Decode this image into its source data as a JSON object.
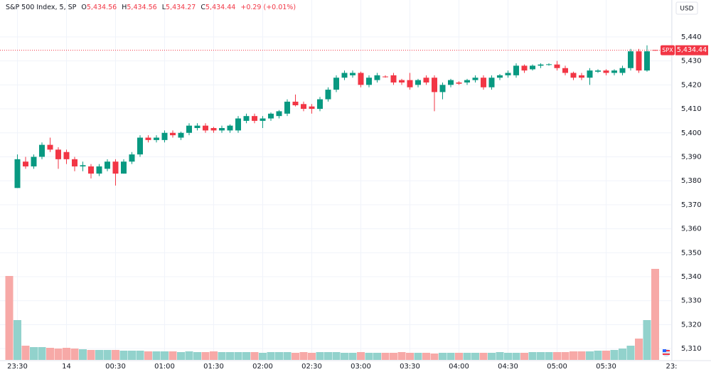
{
  "chart_data": {
    "type": "candlestick",
    "header": {
      "title": "S&P 500 Index, 5, SP",
      "o_label": "O",
      "o": "5,434.56",
      "h_label": "H",
      "h": "5,434.56",
      "l_label": "L",
      "l": "5,434.27",
      "c_label": "C",
      "c": "5,434.44",
      "change": "+0.29 (+0.01%)"
    },
    "currency": "USD",
    "symbol_tag": "SPX",
    "last_price": {
      "value": 5434.44,
      "label": "5,434.44"
    },
    "up_color": "#089981",
    "down_color": "#f23645",
    "volume_up_color": "#92d2cc",
    "volume_down_color": "#f7a9a7",
    "grid": true,
    "categories": [
      null,
      "23:30",
      null,
      null,
      null,
      null,
      null,
      "14",
      null,
      null,
      null,
      null,
      null,
      "00:30",
      null,
      null,
      null,
      null,
      null,
      "01:00",
      null,
      null,
      null,
      null,
      null,
      "01:30",
      null,
      null,
      null,
      null,
      null,
      "02:00",
      null,
      null,
      null,
      null,
      null,
      "02:30",
      null,
      null,
      null,
      null,
      null,
      "03:00",
      null,
      null,
      null,
      null,
      null,
      "03:30",
      null,
      null,
      null,
      null,
      null,
      "04:00",
      null,
      null,
      null,
      null,
      null,
      "04:30",
      null,
      null,
      null,
      null,
      null,
      "05:00",
      null,
      null,
      null,
      null,
      null,
      "05:30",
      null,
      null,
      null,
      null,
      null,
      null,
      null,
      "23:"
    ],
    "open": [
      null,
      5377,
      5388,
      5386,
      5390,
      5395,
      5393,
      5392,
      5389,
      5386,
      5386,
      5383,
      5385,
      5388,
      5383,
      5388,
      5391,
      5398,
      5397,
      5397,
      5400,
      5398,
      5400,
      5402,
      5403,
      5402,
      5401,
      5401,
      5401,
      5405,
      5407,
      5405,
      5406,
      5407,
      5408,
      5413,
      5412,
      5411,
      5410,
      5414,
      5418,
      5423,
      5424,
      5425,
      5420,
      5422,
      5423.5,
      5424,
      5422,
      5422,
      5420,
      5423,
      5423,
      5417,
      5420,
      5421,
      5421,
      5422,
      5423,
      5419,
      5423,
      5424,
      5424,
      5428,
      5426.5,
      5428,
      5428.5,
      5428.5,
      5427,
      5425,
      5424,
      5423,
      5425.5,
      5426,
      5425,
      5425,
      5427,
      5434,
      5426,
      5434.56,
      null,
      null
    ],
    "high": [
      null,
      5391,
      5390,
      5391,
      5396,
      5398,
      5394,
      5393,
      5390,
      5388,
      5387,
      5387,
      5389,
      5389,
      5389,
      5392,
      5399,
      5399,
      5399,
      5401,
      5401,
      5400.5,
      5404,
      5404,
      5404,
      5402.5,
      5403,
      5403.5,
      5407,
      5408,
      5408,
      5407,
      5408.5,
      5409.5,
      5414,
      5416,
      5413,
      5412,
      5415,
      5419,
      5424,
      5426,
      5426,
      5425.5,
      5424,
      5425,
      5424,
      5425,
      5422.5,
      5425,
      5422.5,
      5424,
      5424,
      5421,
      5422.5,
      5421.5,
      5422.5,
      5424,
      5424,
      5424,
      5424.5,
      5426,
      5429,
      5428.5,
      5428.5,
      5429,
      5429,
      5430,
      5428,
      5425.5,
      5425,
      5427,
      5426.5,
      5426.5,
      5426.5,
      5428,
      5435,
      5435,
      5436.5,
      5434.56,
      null,
      null
    ],
    "low": [
      null,
      5377,
      5385,
      5385,
      5389,
      5392,
      5385,
      5387,
      5384,
      5384,
      5381,
      5382,
      5384,
      5378,
      5383,
      5387,
      5390,
      5396,
      5396,
      5396,
      5398,
      5397,
      5399,
      5401,
      5400,
      5400,
      5400,
      5400,
      5400,
      5404,
      5404,
      5402,
      5405,
      5406,
      5407,
      5411,
      5409,
      5408,
      5409,
      5413,
      5417,
      5422,
      5423,
      5419,
      5419,
      5421,
      5423,
      5420,
      5420,
      5418,
      5419,
      5420,
      5409,
      5414,
      5419,
      5420,
      5420,
      5421,
      5418,
      5418,
      5422,
      5423,
      5423,
      5425,
      5426,
      5427,
      5428,
      5426,
      5424,
      5422,
      5422,
      5420,
      5425,
      5424,
      5424,
      5424,
      5426,
      5425,
      5425.5,
      5434.27,
      null,
      null
    ],
    "close": [
      null,
      5389,
      5386,
      5390,
      5395,
      5393,
      5389,
      5389,
      5386,
      5386.5,
      5383,
      5386,
      5388,
      5383,
      5388,
      5391,
      5398,
      5397,
      5398,
      5400,
      5399,
      5400,
      5403,
      5403,
      5401,
      5401,
      5402,
      5403,
      5406,
      5407,
      5405,
      5406,
      5408,
      5409,
      5413,
      5411.5,
      5410,
      5410,
      5414,
      5418,
      5423,
      5425,
      5425,
      5420,
      5423,
      5424,
      5423.4,
      5421,
      5421,
      5419,
      5422,
      5421,
      5417,
      5420,
      5422,
      5420.5,
      5422,
      5423,
      5419,
      5423,
      5424,
      5425,
      5428,
      5426,
      5428,
      5428.5,
      5428.6,
      5427,
      5425,
      5423,
      5423,
      5426,
      5426,
      5425,
      5426,
      5427,
      5434,
      5426,
      5434,
      5434.44,
      null,
      null
    ],
    "volume": [
      118,
      56,
      20,
      18,
      18,
      17,
      16,
      17,
      16,
      15,
      14,
      14,
      14,
      14,
      13,
      13,
      13,
      12,
      12,
      12,
      12,
      11,
      12,
      11,
      11,
      12,
      11,
      11,
      11,
      11,
      11,
      10,
      11,
      11,
      11,
      10,
      11,
      10,
      11,
      11,
      11,
      10,
      10,
      11,
      10,
      10,
      10,
      10,
      11,
      10,
      10,
      10,
      9,
      10,
      10,
      10,
      10,
      10,
      10,
      10,
      11,
      10,
      10,
      10,
      11,
      11,
      11,
      11,
      11,
      12,
      12,
      12,
      13,
      13,
      14,
      16,
      20,
      30,
      56,
      128,
      null,
      null
    ],
    "ylim": [
      5305.6,
      5455.4
    ],
    "yticks": [
      {
        "value": 5440,
        "label": "5,440"
      },
      {
        "value": 5430,
        "label": "5,430"
      },
      {
        "value": 5420,
        "label": "5,420"
      },
      {
        "value": 5410,
        "label": "5,410"
      },
      {
        "value": 5400,
        "label": "5,400"
      },
      {
        "value": 5390,
        "label": "5,390"
      },
      {
        "value": 5380,
        "label": "5,380"
      },
      {
        "value": 5370,
        "label": "5,370"
      },
      {
        "value": 5360,
        "label": "5,360"
      },
      {
        "value": 5350,
        "label": "5,350"
      },
      {
        "value": 5340,
        "label": "5,340"
      },
      {
        "value": 5330,
        "label": "5,330"
      },
      {
        "value": 5320,
        "label": "5,320"
      },
      {
        "value": 5310,
        "label": "5,310"
      }
    ]
  }
}
